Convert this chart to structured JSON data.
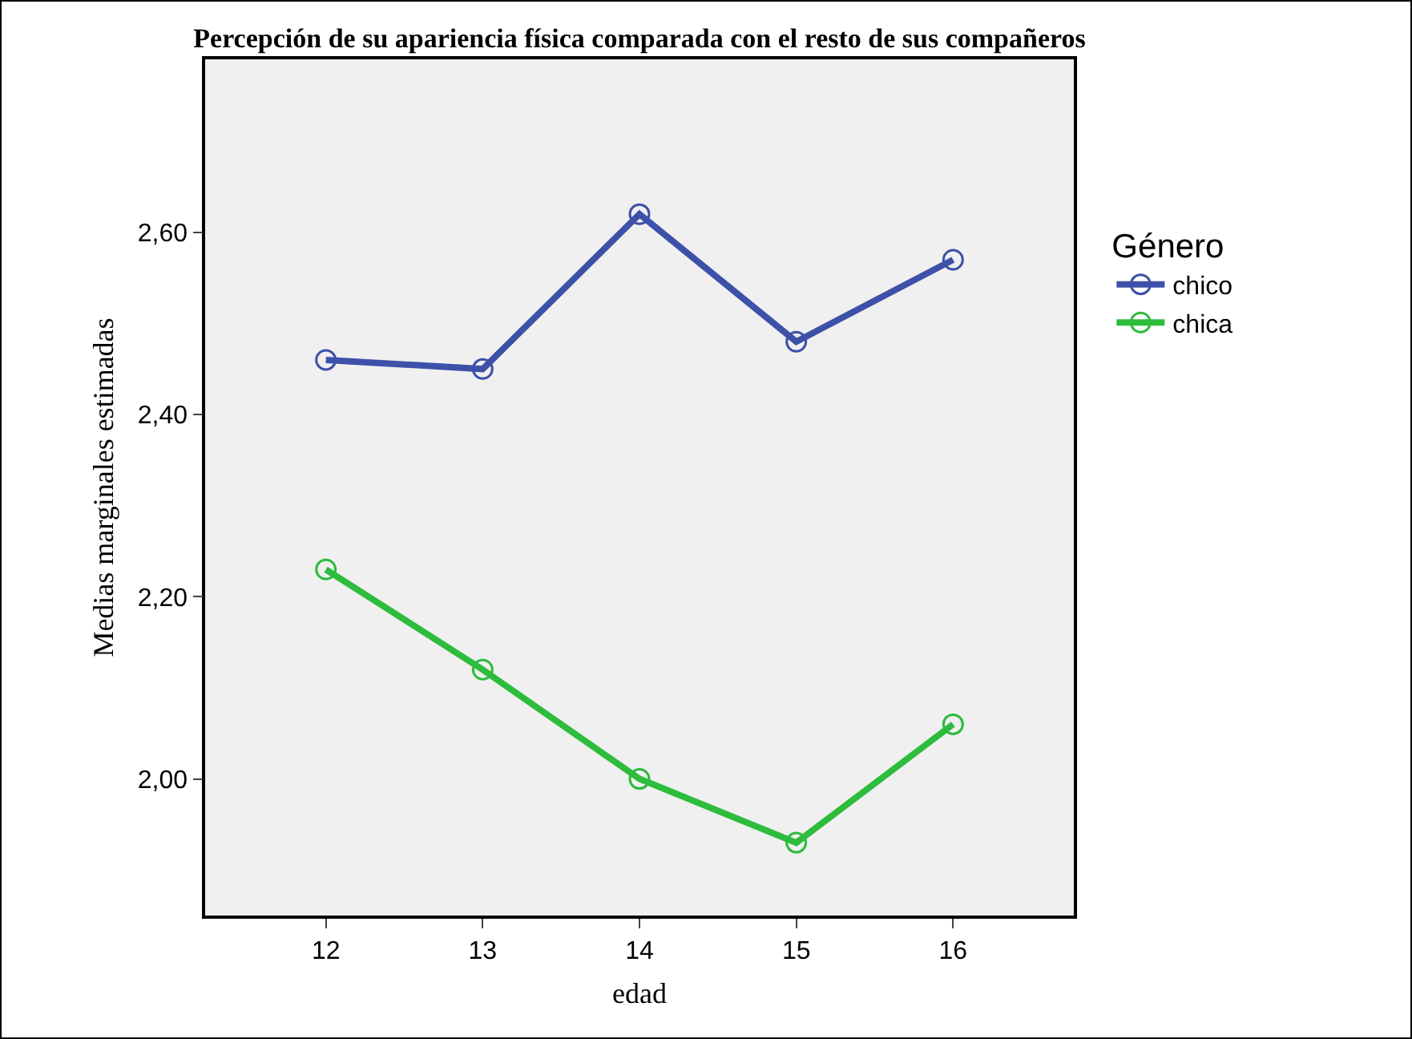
{
  "chart_data": {
    "type": "line",
    "title": "Percepción de su apariencia física comparada con el resto de sus compañeros",
    "xlabel": "edad",
    "ylabel": "Medias marginales estimadas",
    "legend_title": "Género",
    "x": [
      12,
      13,
      14,
      15,
      16
    ],
    "xlim": [
      11.23,
      16.77
    ],
    "xticks": [
      12,
      13,
      14,
      15,
      16
    ],
    "ylim": [
      1.85,
      2.79
    ],
    "yticks": [
      {
        "value": 2.0,
        "label": "2,00"
      },
      {
        "value": 2.2,
        "label": "2,20"
      },
      {
        "value": 2.4,
        "label": "2,40"
      },
      {
        "value": 2.6,
        "label": "2,60"
      }
    ],
    "series": [
      {
        "name": "chico",
        "color": "#3e51a9",
        "values": [
          2.46,
          2.45,
          2.62,
          2.48,
          2.57
        ]
      },
      {
        "name": "chica",
        "color": "#2dbc3c",
        "values": [
          2.23,
          2.12,
          2.0,
          1.93,
          2.06
        ]
      }
    ],
    "marker": "circle",
    "line_style": "solid",
    "grid": false,
    "legend": "top right"
  }
}
